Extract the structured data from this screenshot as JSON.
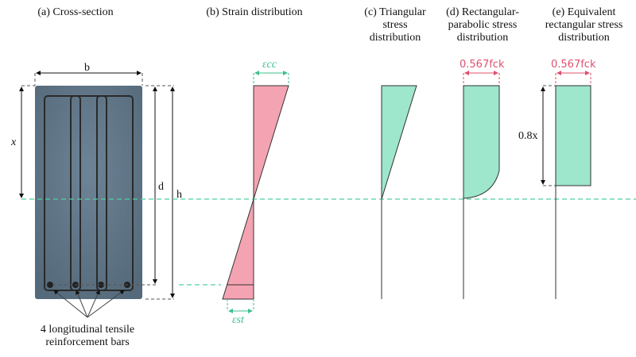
{
  "titles": {
    "a": "(a) Cross-section",
    "b": "(b) Strain distribution",
    "c": "(c) Triangular stress distribution",
    "d": "(d) Rectangular-parabolic stress distribution",
    "e": "(e) Equivalent rectangular stress distribution"
  },
  "labels": {
    "b": "b",
    "x": "x",
    "d": "d",
    "h": "h",
    "ecc": "εcc",
    "est": "εst",
    "stress_d": "0.567fck",
    "stress_e": "0.567fck",
    "depth_e": "0.8x",
    "bars": "4 longitudinal tensile reinforcement bars"
  },
  "colors": {
    "concrete": "#5f7586",
    "strain": "#f4a3b2",
    "stress": "#9ee6cc",
    "neutral_axis": "#4fcf9f",
    "stress_label": "#e0506e",
    "strain_label": "#3fc08f"
  }
}
